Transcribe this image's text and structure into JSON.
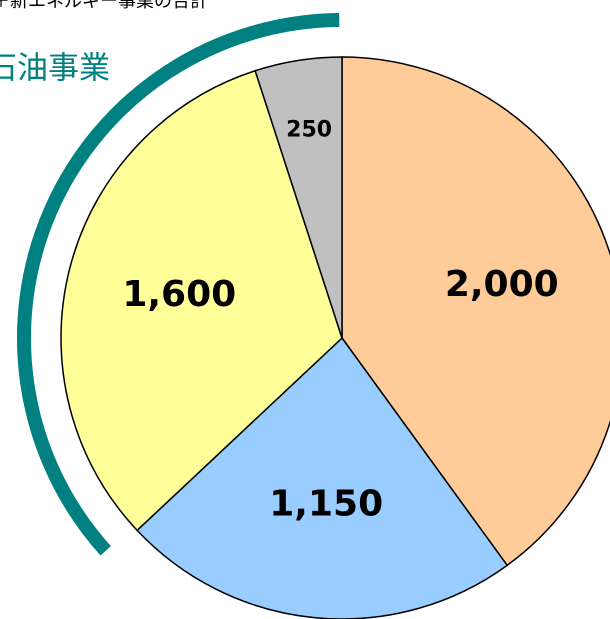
{
  "chart_data": {
    "type": "pie",
    "annotations": [
      "＋新エネルギー事業の合計",
      "石油事業"
    ],
    "categories": [
      null,
      null,
      null,
      null
    ],
    "values": [
      2000,
      1150,
      1600,
      250
    ],
    "value_labels": [
      "2,000",
      "1,150",
      "1,600",
      "250"
    ],
    "colors": [
      "#ffcc99",
      "#99ccff",
      "#ffff99",
      "#c0c0c0"
    ],
    "bracket_color": "#008080"
  }
}
